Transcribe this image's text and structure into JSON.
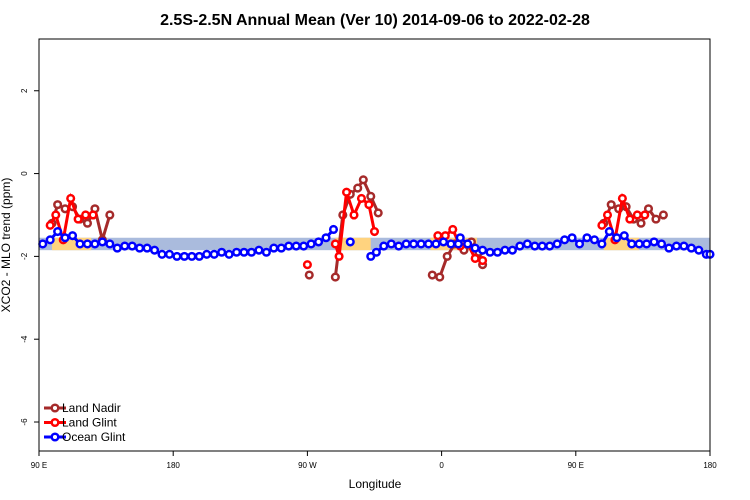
{
  "chart_data": {
    "type": "line",
    "title": "2.5S-2.5N Annual Mean (Ver 10)   2014-09-06 to 2022-02-28",
    "xlabel": "Longitude",
    "ylabel": "XCO2 - MLO trend (ppm)",
    "x_range": [
      90,
      450
    ],
    "xlim": [
      90,
      450
    ],
    "ylim": [
      -6.7,
      3.25
    ],
    "x_ticks": [
      90,
      162,
      234,
      306,
      378,
      450
    ],
    "x_tick_labels": [
      "90 E",
      "180",
      "90 W",
      "0",
      "90 E",
      "180"
    ],
    "y_ticks": [
      -6,
      -4,
      -2,
      0,
      2
    ],
    "y_tick_labels": [
      "-6",
      "-4",
      "-2",
      "0",
      "2"
    ],
    "legend_position": "bottom-left",
    "colors": {
      "land_nadir": "#a52a2a",
      "land_glint": "#ff0000",
      "ocean_glint": "#0000ff",
      "band_blue": "#aabbdd",
      "band_orange": "#ffd37f"
    },
    "bands": [
      {
        "color": "band_blue",
        "from": 90,
        "to": 450,
        "y0": -1.55,
        "y1": -1.85
      },
      {
        "color": "band_orange",
        "from": 97,
        "to": 118,
        "y0": -1.55,
        "y1": -1.85
      },
      {
        "color": "band_orange",
        "from": 249,
        "to": 268,
        "y0": -1.55,
        "y1": -1.85
      },
      {
        "color": "band_orange",
        "from": 300,
        "to": 325,
        "y0": -1.55,
        "y1": -1.85
      },
      {
        "color": "band_orange",
        "from": 393,
        "to": 412,
        "y0": -1.55,
        "y1": -1.85
      }
    ],
    "series": [
      {
        "name": "Land Nadir",
        "color": "land_nadir",
        "segments": [
          [
            [
              97,
              -1.2
            ],
            [
              100,
              -0.75
            ],
            [
              104,
              -0.85
            ],
            [
              108,
              -0.8
            ],
            [
              112,
              -1.1
            ],
            [
              116,
              -1.2
            ],
            [
              120,
              -0.85
            ],
            [
              124,
              -1.6
            ],
            [
              128,
              -1.0
            ]
          ],
          [
            [
              235,
              -2.45
            ]
          ],
          [
            [
              249,
              -2.5
            ],
            [
              253,
              -1.0
            ],
            [
              257,
              -0.5
            ],
            [
              261,
              -0.35
            ],
            [
              264,
              -0.15
            ],
            [
              268,
              -0.55
            ],
            [
              272,
              -0.95
            ]
          ],
          [
            [
              301,
              -2.45
            ],
            [
              305,
              -2.5
            ],
            [
              309,
              -2.0
            ],
            [
              313,
              -1.7
            ],
            [
              318,
              -1.85
            ],
            [
              322,
              -1.65
            ],
            [
              326,
              -1.9
            ],
            [
              328,
              -2.2
            ]
          ],
          [
            [
              393,
              -1.2
            ],
            [
              397,
              -0.75
            ],
            [
              401,
              -0.85
            ],
            [
              405,
              -0.8
            ],
            [
              409,
              -1.1
            ],
            [
              413,
              -1.2
            ],
            [
              417,
              -0.85
            ],
            [
              421,
              -1.1
            ],
            [
              425,
              -1.0
            ]
          ]
        ]
      },
      {
        "name": "Land Glint",
        "color": "land_glint",
        "segments": [
          [
            [
              96,
              -1.25
            ],
            [
              99,
              -1.0
            ],
            [
              103,
              -1.6
            ],
            [
              107,
              -0.6
            ],
            [
              111,
              -1.1
            ],
            [
              115,
              -1.0
            ],
            [
              119,
              -1.0
            ]
          ],
          [
            [
              234,
              -2.2
            ]
          ],
          [
            [
              249,
              -1.7
            ],
            [
              251,
              -2.0
            ],
            [
              255,
              -0.45
            ],
            [
              259,
              -1.0
            ],
            [
              263,
              -0.6
            ],
            [
              267,
              -0.75
            ],
            [
              270,
              -1.4
            ]
          ],
          [
            [
              304,
              -1.5
            ],
            [
              308,
              -1.5
            ],
            [
              312,
              -1.35
            ],
            [
              316,
              -1.75
            ],
            [
              320,
              -1.7
            ],
            [
              324,
              -2.05
            ],
            [
              328,
              -2.1
            ]
          ],
          [
            [
              392,
              -1.25
            ],
            [
              395,
              -1.0
            ],
            [
              399,
              -1.6
            ],
            [
              403,
              -0.6
            ],
            [
              407,
              -1.1
            ],
            [
              411,
              -1.0
            ],
            [
              415,
              -1.0
            ]
          ]
        ]
      },
      {
        "name": "Ocean Glint",
        "color": "ocean_glint",
        "segments": [
          [
            [
              92,
              -1.7
            ],
            [
              96,
              -1.6
            ],
            [
              100,
              -1.4
            ],
            [
              104,
              -1.55
            ],
            [
              108,
              -1.5
            ],
            [
              112,
              -1.7
            ],
            [
              116,
              -1.7
            ],
            [
              120,
              -1.7
            ],
            [
              124,
              -1.65
            ],
            [
              128,
              -1.7
            ],
            [
              132,
              -1.8
            ],
            [
              136,
              -1.75
            ],
            [
              140,
              -1.75
            ],
            [
              144,
              -1.8
            ],
            [
              148,
              -1.8
            ],
            [
              152,
              -1.85
            ],
            [
              156,
              -1.95
            ],
            [
              160,
              -1.95
            ],
            [
              164,
              -2.0
            ],
            [
              168,
              -2.0
            ],
            [
              172,
              -2.0
            ],
            [
              176,
              -2.0
            ],
            [
              180,
              -1.95
            ],
            [
              184,
              -1.95
            ],
            [
              188,
              -1.9
            ],
            [
              192,
              -1.95
            ],
            [
              196,
              -1.9
            ],
            [
              200,
              -1.9
            ],
            [
              204,
              -1.9
            ],
            [
              208,
              -1.85
            ],
            [
              212,
              -1.9
            ],
            [
              216,
              -1.8
            ],
            [
              220,
              -1.8
            ],
            [
              224,
              -1.75
            ],
            [
              228,
              -1.75
            ],
            [
              232,
              -1.75
            ],
            [
              236,
              -1.7
            ],
            [
              240,
              -1.65
            ],
            [
              244,
              -1.55
            ],
            [
              248,
              -1.35
            ]
          ],
          [
            [
              257,
              -1.65
            ]
          ],
          [
            [
              268,
              -2.0
            ],
            [
              271,
              -1.9
            ],
            [
              275,
              -1.75
            ],
            [
              279,
              -1.7
            ],
            [
              283,
              -1.75
            ],
            [
              287,
              -1.7
            ],
            [
              291,
              -1.7
            ],
            [
              295,
              -1.7
            ],
            [
              299,
              -1.7
            ],
            [
              303,
              -1.7
            ],
            [
              307,
              -1.65
            ],
            [
              311,
              -1.7
            ],
            [
              315,
              -1.7
            ]
          ],
          [
            [
              316,
              -1.55
            ],
            [
              320,
              -1.7
            ],
            [
              324,
              -1.8
            ],
            [
              328,
              -1.85
            ],
            [
              332,
              -1.9
            ],
            [
              336,
              -1.9
            ],
            [
              340,
              -1.85
            ],
            [
              344,
              -1.85
            ],
            [
              348,
              -1.75
            ],
            [
              352,
              -1.7
            ],
            [
              356,
              -1.75
            ],
            [
              360,
              -1.75
            ],
            [
              364,
              -1.75
            ],
            [
              368,
              -1.7
            ],
            [
              372,
              -1.6
            ],
            [
              376,
              -1.55
            ],
            [
              380,
              -1.7
            ],
            [
              384,
              -1.55
            ],
            [
              388,
              -1.6
            ]
          ],
          [
            [
              392,
              -1.7
            ],
            [
              396,
              -1.4
            ],
            [
              400,
              -1.55
            ],
            [
              404,
              -1.5
            ],
            [
              408,
              -1.7
            ],
            [
              412,
              -1.7
            ],
            [
              416,
              -1.7
            ],
            [
              420,
              -1.65
            ],
            [
              424,
              -1.7
            ],
            [
              428,
              -1.8
            ],
            [
              432,
              -1.75
            ],
            [
              436,
              -1.75
            ],
            [
              440,
              -1.8
            ],
            [
              444,
              -1.85
            ],
            [
              448,
              -1.95
            ],
            [
              450,
              -1.95
            ]
          ]
        ]
      }
    ]
  }
}
